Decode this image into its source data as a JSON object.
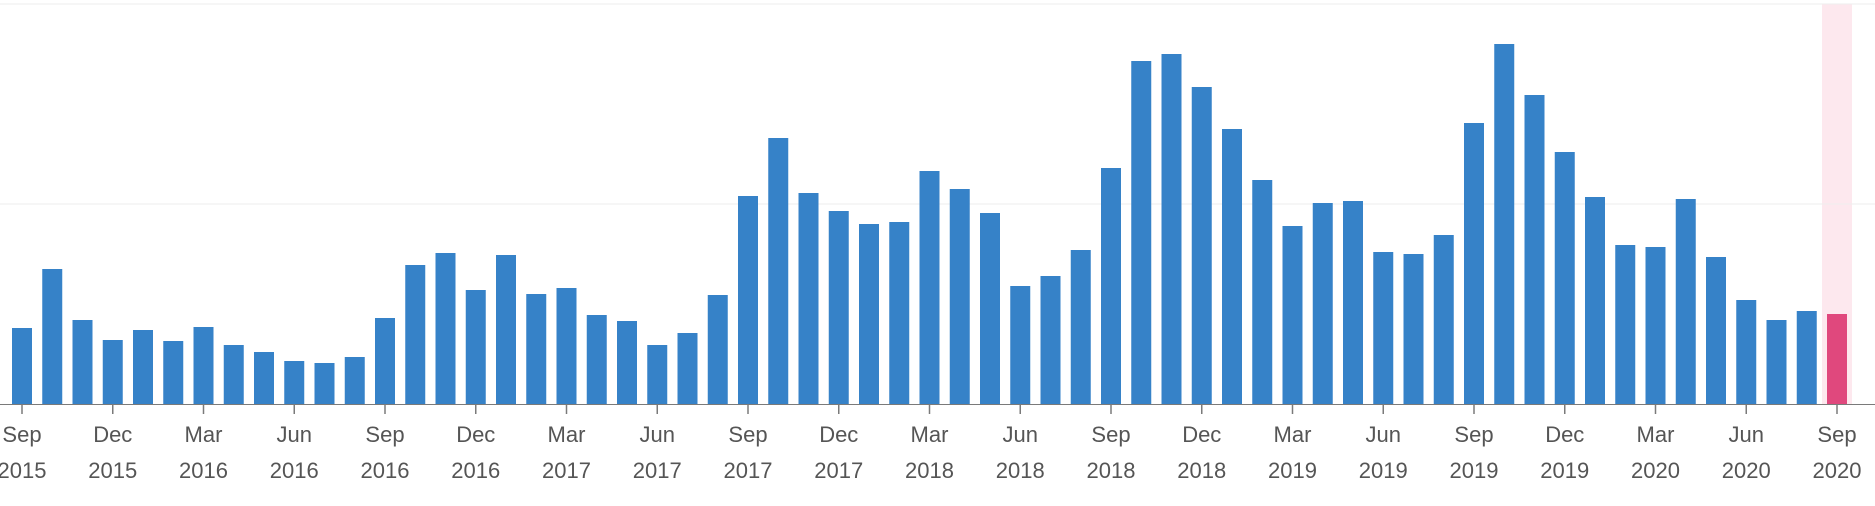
{
  "colors": {
    "bar": "#3682c8",
    "highlight_bar": "#e0487d",
    "highlight_band": "#fde8ee",
    "gridline": "#eeeeee",
    "axis": "#7a7a7a",
    "tick_text": "#555555"
  },
  "chart_data": {
    "type": "bar",
    "title": "",
    "xlabel": "",
    "ylabel": "",
    "grid": true,
    "ylim": [
      0,
      400
    ],
    "months": [
      "Sep 2015",
      "Oct 2015",
      "Nov 2015",
      "Dec 2015",
      "Jan 2016",
      "Feb 2016",
      "Mar 2016",
      "Apr 2016",
      "May 2016",
      "Jun 2016",
      "Jul 2016",
      "Aug 2016",
      "Sep 2016",
      "Oct 2016",
      "Nov 2016",
      "Dec 2016",
      "Jan 2017",
      "Feb 2017",
      "Mar 2017",
      "Apr 2017",
      "May 2017",
      "Jun 2017",
      "Jul 2017",
      "Aug 2017",
      "Sep 2017",
      "Oct 2017",
      "Nov 2017",
      "Dec 2017",
      "Jan 2018",
      "Feb 2018",
      "Mar 2018",
      "Apr 2018",
      "May 2018",
      "Jun 2018",
      "Jul 2018",
      "Aug 2018",
      "Sep 2018",
      "Oct 2018",
      "Nov 2018",
      "Dec 2018",
      "Jan 2019",
      "Feb 2019",
      "Mar 2019",
      "Apr 2019",
      "May 2019",
      "Jun 2019",
      "Jul 2019",
      "Aug 2019",
      "Sep 2019",
      "Oct 2019",
      "Nov 2019",
      "Dec 2019",
      "Jan 2020",
      "Feb 2020",
      "Mar 2020",
      "Apr 2020",
      "May 2020",
      "Jun 2020",
      "Jul 2020",
      "Aug 2020",
      "Sep 2020"
    ],
    "values": [
      76,
      135,
      84,
      64,
      74,
      63,
      77,
      59,
      52,
      43,
      41,
      47,
      86,
      139,
      151,
      114,
      149,
      110,
      116,
      89,
      83,
      59,
      71,
      109,
      208,
      266,
      211,
      193,
      180,
      182,
      233,
      215,
      191,
      118,
      128,
      154,
      236,
      343,
      350,
      317,
      275,
      224,
      178,
      201,
      203,
      152,
      150,
      169,
      281,
      360,
      309,
      252,
      207,
      159,
      157,
      205,
      147,
      104,
      84,
      93,
      90
    ],
    "highlight_index": 60,
    "x_tick_labels": [
      {
        "month": "Sep",
        "year": "2015"
      },
      {
        "month": "Dec",
        "year": "2015"
      },
      {
        "month": "Mar",
        "year": "2016"
      },
      {
        "month": "Jun",
        "year": "2016"
      },
      {
        "month": "Sep",
        "year": "2016"
      },
      {
        "month": "Dec",
        "year": "2016"
      },
      {
        "month": "Mar",
        "year": "2017"
      },
      {
        "month": "Jun",
        "year": "2017"
      },
      {
        "month": "Sep",
        "year": "2017"
      },
      {
        "month": "Dec",
        "year": "2017"
      },
      {
        "month": "Mar",
        "year": "2018"
      },
      {
        "month": "Jun",
        "year": "2018"
      },
      {
        "month": "Sep",
        "year": "2018"
      },
      {
        "month": "Dec",
        "year": "2018"
      },
      {
        "month": "Mar",
        "year": "2019"
      },
      {
        "month": "Jun",
        "year": "2019"
      },
      {
        "month": "Sep",
        "year": "2019"
      },
      {
        "month": "Dec",
        "year": "2019"
      },
      {
        "month": "Mar",
        "year": "2020"
      },
      {
        "month": "Jun",
        "year": "2020"
      },
      {
        "month": "Sep",
        "year": "2020"
      }
    ]
  }
}
